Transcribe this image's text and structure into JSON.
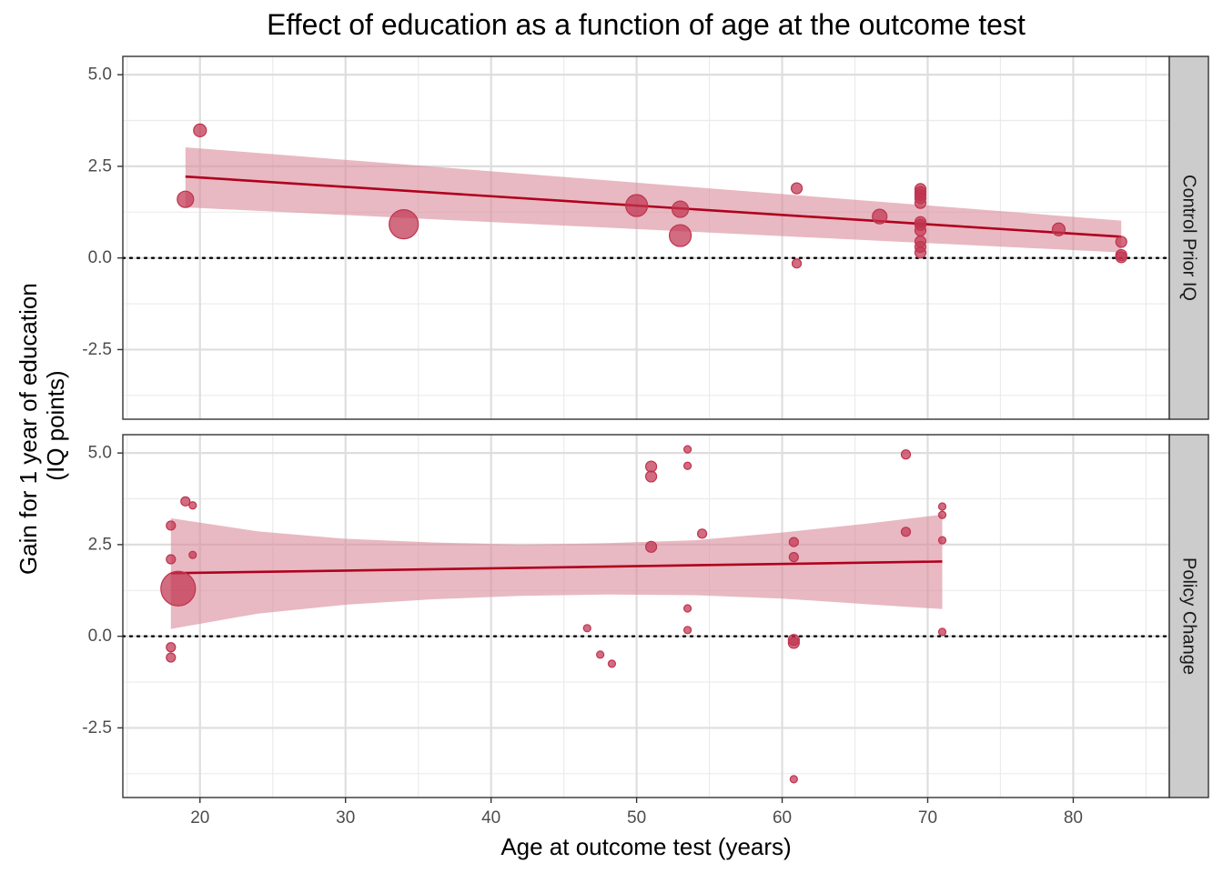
{
  "chart_data": {
    "type": "scatter",
    "title": "Effect of education as a function of age at the outcome test",
    "xlabel": "Age at outcome test (years)",
    "ylabel_lines": [
      "Gain for 1 year of education",
      "(IQ points)"
    ],
    "xlim": [
      14.7,
      86.6
    ],
    "ylim": [
      -4.4,
      5.5
    ],
    "x_ticks": [
      20,
      30,
      40,
      50,
      60,
      70,
      80
    ],
    "y_ticks": [
      5.0,
      2.5,
      0.0,
      -2.5
    ],
    "y_tick_labels": [
      "5.0",
      "2.5",
      "0.0",
      "-2.5"
    ],
    "x_tick_labels": [
      "20",
      "30",
      "40",
      "50",
      "60",
      "70",
      "80"
    ],
    "reference_line": {
      "y": 0,
      "style": "dotted"
    },
    "grid": true,
    "colors": {
      "point": "#c0334f",
      "fit_line": "#b0001e",
      "ribbon": "#d98a99",
      "strip_bg": "#cccccc"
    },
    "panels": [
      {
        "label": "Control Prior IQ",
        "points": [
          {
            "x": 19.0,
            "y": 1.6,
            "size": 9
          },
          {
            "x": 20.0,
            "y": 3.48,
            "size": 7
          },
          {
            "x": 34.0,
            "y": 0.92,
            "size": 16
          },
          {
            "x": 50.0,
            "y": 1.43,
            "size": 12
          },
          {
            "x": 53.0,
            "y": 1.33,
            "size": 9
          },
          {
            "x": 53.0,
            "y": 0.61,
            "size": 12
          },
          {
            "x": 61.0,
            "y": 1.9,
            "size": 6
          },
          {
            "x": 61.0,
            "y": -0.15,
            "size": 5
          },
          {
            "x": 66.7,
            "y": 1.13,
            "size": 8
          },
          {
            "x": 69.5,
            "y": 1.88,
            "size": 6
          },
          {
            "x": 69.5,
            "y": 1.8,
            "size": 6
          },
          {
            "x": 69.5,
            "y": 1.72,
            "size": 6
          },
          {
            "x": 69.5,
            "y": 1.63,
            "size": 6
          },
          {
            "x": 69.5,
            "y": 1.5,
            "size": 6
          },
          {
            "x": 69.5,
            "y": 0.98,
            "size": 6
          },
          {
            "x": 69.5,
            "y": 0.9,
            "size": 6
          },
          {
            "x": 69.5,
            "y": 0.75,
            "size": 6
          },
          {
            "x": 69.5,
            "y": 0.45,
            "size": 6
          },
          {
            "x": 69.5,
            "y": 0.3,
            "size": 6
          },
          {
            "x": 69.5,
            "y": 0.15,
            "size": 6
          },
          {
            "x": 79.0,
            "y": 0.78,
            "size": 7
          },
          {
            "x": 83.3,
            "y": 0.44,
            "size": 6
          },
          {
            "x": 83.3,
            "y": 0.08,
            "size": 6
          },
          {
            "x": 83.3,
            "y": 0.02,
            "size": 6
          }
        ],
        "fit": {
          "x": [
            19.0,
            83.3
          ],
          "y": [
            2.22,
            0.58
          ]
        },
        "ribbon": {
          "x": [
            19.0,
            83.3
          ],
          "ymin": [
            1.38,
            0.15
          ],
          "ymax": [
            3.02,
            1.02
          ]
        }
      },
      {
        "label": "Policy Change",
        "points": [
          {
            "x": 18.5,
            "y": 1.3,
            "size": 19
          },
          {
            "x": 18.0,
            "y": 3.02,
            "size": 5
          },
          {
            "x": 18.0,
            "y": 2.1,
            "size": 5
          },
          {
            "x": 18.0,
            "y": -0.3,
            "size": 5
          },
          {
            "x": 18.0,
            "y": -0.58,
            "size": 5
          },
          {
            "x": 19.0,
            "y": 3.68,
            "size": 5
          },
          {
            "x": 19.5,
            "y": 3.57,
            "size": 4
          },
          {
            "x": 19.5,
            "y": 2.22,
            "size": 4
          },
          {
            "x": 46.6,
            "y": 0.22,
            "size": 4
          },
          {
            "x": 47.5,
            "y": -0.5,
            "size": 4
          },
          {
            "x": 48.3,
            "y": -0.75,
            "size": 4
          },
          {
            "x": 51.0,
            "y": 4.63,
            "size": 6
          },
          {
            "x": 51.0,
            "y": 4.36,
            "size": 6
          },
          {
            "x": 51.0,
            "y": 2.44,
            "size": 6
          },
          {
            "x": 53.5,
            "y": 5.1,
            "size": 4
          },
          {
            "x": 53.5,
            "y": 4.65,
            "size": 4
          },
          {
            "x": 53.5,
            "y": 0.76,
            "size": 4
          },
          {
            "x": 53.5,
            "y": 0.17,
            "size": 4
          },
          {
            "x": 54.5,
            "y": 2.8,
            "size": 5
          },
          {
            "x": 60.8,
            "y": 2.57,
            "size": 5
          },
          {
            "x": 60.8,
            "y": 2.16,
            "size": 5
          },
          {
            "x": 60.8,
            "y": -0.1,
            "size": 6
          },
          {
            "x": 60.8,
            "y": -0.18,
            "size": 6
          },
          {
            "x": 60.8,
            "y": -3.9,
            "size": 4
          },
          {
            "x": 68.5,
            "y": 4.96,
            "size": 5
          },
          {
            "x": 68.5,
            "y": 2.85,
            "size": 5
          },
          {
            "x": 71.0,
            "y": 3.54,
            "size": 4
          },
          {
            "x": 71.0,
            "y": 3.31,
            "size": 4
          },
          {
            "x": 71.0,
            "y": 2.62,
            "size": 4
          },
          {
            "x": 71.0,
            "y": 0.12,
            "size": 4
          }
        ],
        "fit": {
          "x": [
            18.0,
            71.0
          ],
          "y": [
            1.72,
            2.04
          ]
        },
        "ribbon": {
          "x": [
            18.0,
            24.0,
            30.0,
            36.0,
            42.0,
            48.0,
            54.0,
            60.0,
            66.0,
            71.0
          ],
          "ymin": [
            0.2,
            0.62,
            0.86,
            1.01,
            1.1,
            1.14,
            1.12,
            1.03,
            0.87,
            0.74
          ],
          "ymax": [
            3.22,
            2.86,
            2.66,
            2.56,
            2.5,
            2.54,
            2.62,
            2.83,
            3.08,
            3.32
          ]
        }
      }
    ]
  }
}
